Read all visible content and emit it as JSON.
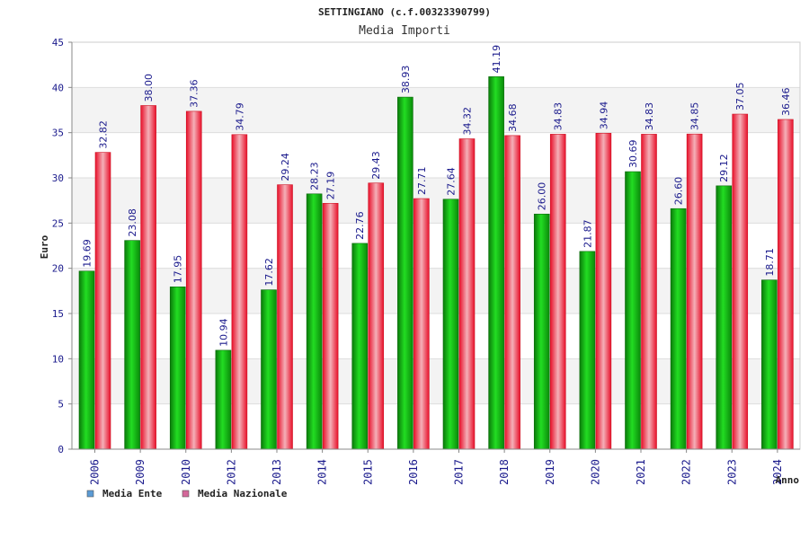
{
  "chart_data": {
    "type": "bar",
    "title": "SETTINGIANO (c.f.00323390799)",
    "subtitle": "Media Importi",
    "xlabel": "Anno",
    "ylabel": "Euro",
    "ylim": [
      0,
      45
    ],
    "yticks": [
      "0",
      "5",
      "10",
      "15",
      "20",
      "25",
      "30",
      "35",
      "40",
      "45"
    ],
    "grid": true,
    "legend_position": "bottom-left",
    "categories": [
      "2006",
      "2009",
      "2010",
      "2012",
      "2013",
      "2014",
      "2015",
      "2016",
      "2017",
      "2018",
      "2019",
      "2020",
      "2021",
      "2022",
      "2023",
      "2024"
    ],
    "series": [
      {
        "name": "Media Ente",
        "color": "#22aa22",
        "legend_color": "#5b9bd5",
        "values": [
          19.69,
          23.08,
          17.95,
          10.94,
          17.62,
          28.23,
          22.76,
          38.93,
          27.64,
          41.19,
          26.0,
          21.87,
          30.69,
          26.6,
          29.12,
          18.71
        ],
        "labels": [
          "19.69",
          "23.08",
          "17.95",
          "10.94",
          "17.62",
          "28.23",
          "22.76",
          "38.93",
          "27.64",
          "41.19",
          "26.00",
          "21.87",
          "30.69",
          "26.60",
          "29.12",
          "18.71"
        ]
      },
      {
        "name": "Media Nazionale",
        "color": "#ee3344",
        "legend_color": "#d4689a",
        "values": [
          32.82,
          38.0,
          37.36,
          34.79,
          29.24,
          27.19,
          29.43,
          27.71,
          34.32,
          34.68,
          34.83,
          34.94,
          34.83,
          34.85,
          37.05,
          36.46
        ],
        "labels": [
          "32.82",
          "38.00",
          "37.36",
          "34.79",
          "29.24",
          "27.19",
          "29.43",
          "27.71",
          "34.32",
          "34.68",
          "34.83",
          "34.94",
          "34.83",
          "34.85",
          "37.05",
          "36.46"
        ]
      }
    ]
  }
}
